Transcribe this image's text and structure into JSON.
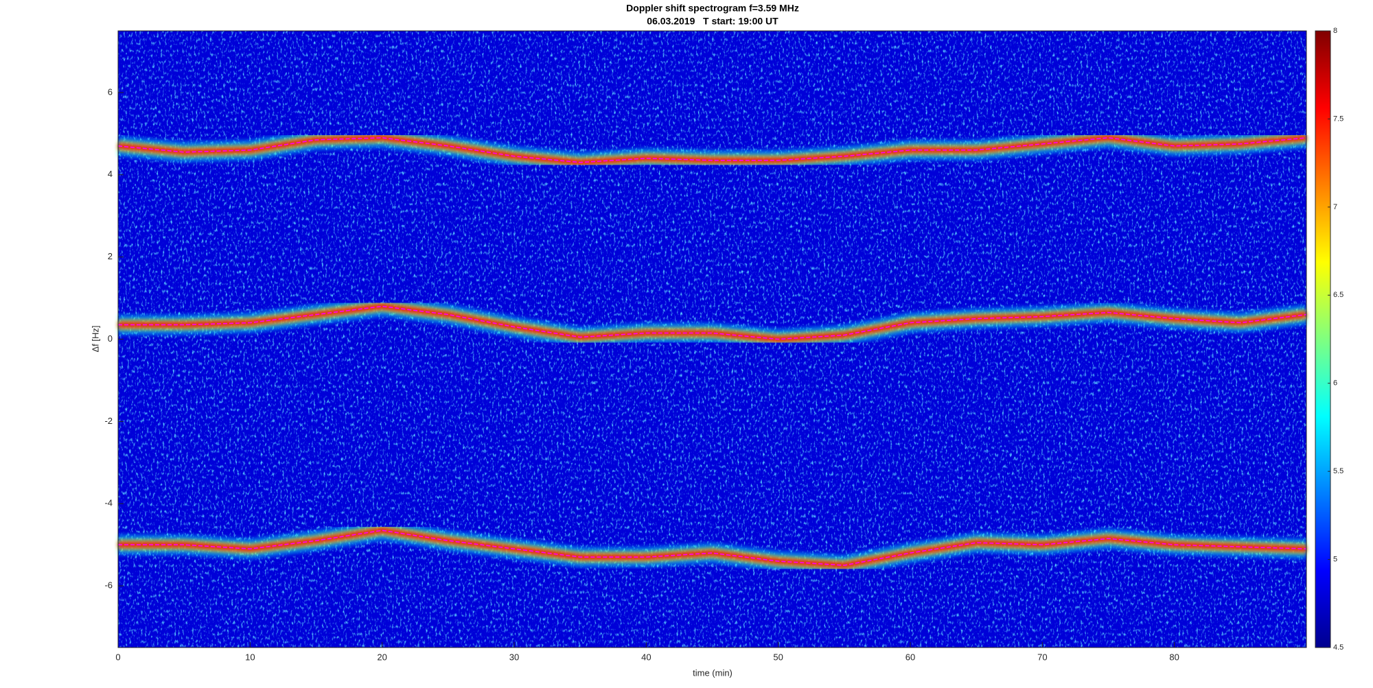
{
  "chart_data": {
    "type": "spectrogram",
    "title": "Doppler shift spectrogram f=3.59 MHz",
    "subtitle": "06.03.2019   T start: 19:00 UT",
    "x_label": "time (min)",
    "y_label": "Δf [Hz]",
    "x": [
      0,
      5,
      10,
      15,
      20,
      25,
      30,
      35,
      40,
      45,
      50,
      55,
      60,
      65,
      70,
      75,
      80,
      85,
      90
    ],
    "series": [
      {
        "color": "#ff00ff",
        "values": [
          4.7,
          4.55,
          4.6,
          4.85,
          4.9,
          4.7,
          4.45,
          4.3,
          4.4,
          4.35,
          4.35,
          4.45,
          4.6,
          4.6,
          4.75,
          4.9,
          4.7,
          4.75,
          4.9
        ]
      },
      {
        "color": "#ff00ff",
        "values": [
          0.35,
          0.35,
          0.4,
          0.6,
          0.8,
          0.6,
          0.3,
          0.05,
          0.15,
          0.15,
          0.0,
          0.1,
          0.4,
          0.5,
          0.55,
          0.65,
          0.5,
          0.4,
          0.6
        ]
      },
      {
        "color": "#ff00ff",
        "values": [
          -5.0,
          -5.0,
          -5.1,
          -4.9,
          -4.65,
          -4.9,
          -5.1,
          -5.3,
          -5.3,
          -5.2,
          -5.4,
          -5.5,
          -5.2,
          -4.95,
          -5.0,
          -4.85,
          -5.0,
          -5.05,
          -5.1
        ]
      }
    ],
    "xlim": [
      0,
      90
    ],
    "xticks": [
      0,
      10,
      20,
      30,
      40,
      50,
      60,
      70,
      80
    ],
    "ylim": [
      -7.5,
      7.5
    ],
    "yticks": [
      -6,
      -4,
      -2,
      0,
      2,
      4,
      6
    ],
    "colormap": "jet",
    "clim": [
      4.5,
      8
    ],
    "cticks": [
      4.5,
      5,
      5.5,
      6,
      6.5,
      7,
      7.5,
      8
    ]
  }
}
